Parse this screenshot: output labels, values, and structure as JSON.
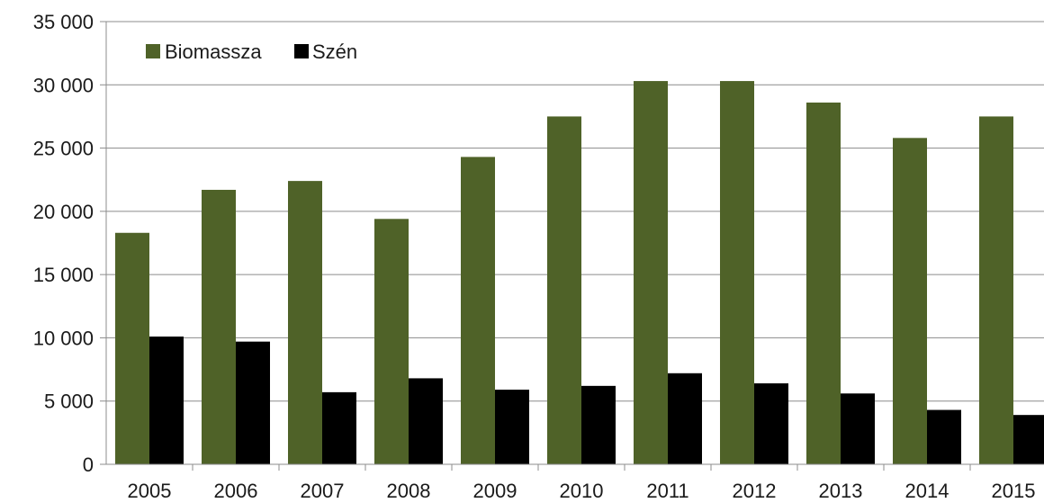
{
  "chart_data": {
    "type": "bar",
    "title": "",
    "xlabel": "",
    "ylabel": "",
    "categories": [
      "2005",
      "2006",
      "2007",
      "2008",
      "2009",
      "2010",
      "2011",
      "2012",
      "2013",
      "2014",
      "2015"
    ],
    "series": [
      {
        "name": "Biomassza",
        "color": "#4f6228",
        "values": [
          18300,
          21700,
          22400,
          19400,
          24300,
          27500,
          30300,
          30300,
          28600,
          25800,
          27500
        ]
      },
      {
        "name": "Szén",
        "color": "#000000",
        "values": [
          10100,
          9700,
          5700,
          6800,
          5900,
          6200,
          7200,
          6400,
          5600,
          4300,
          3900
        ]
      }
    ],
    "ylim": [
      0,
      35000
    ],
    "yticks": [
      0,
      5000,
      10000,
      15000,
      20000,
      25000,
      30000,
      35000
    ],
    "ytick_labels": [
      "0",
      "5 000",
      "10 000",
      "15 000",
      "20 000",
      "25 000",
      "30 000",
      "35 000"
    ],
    "grid": true,
    "legend_position": "top-left"
  }
}
